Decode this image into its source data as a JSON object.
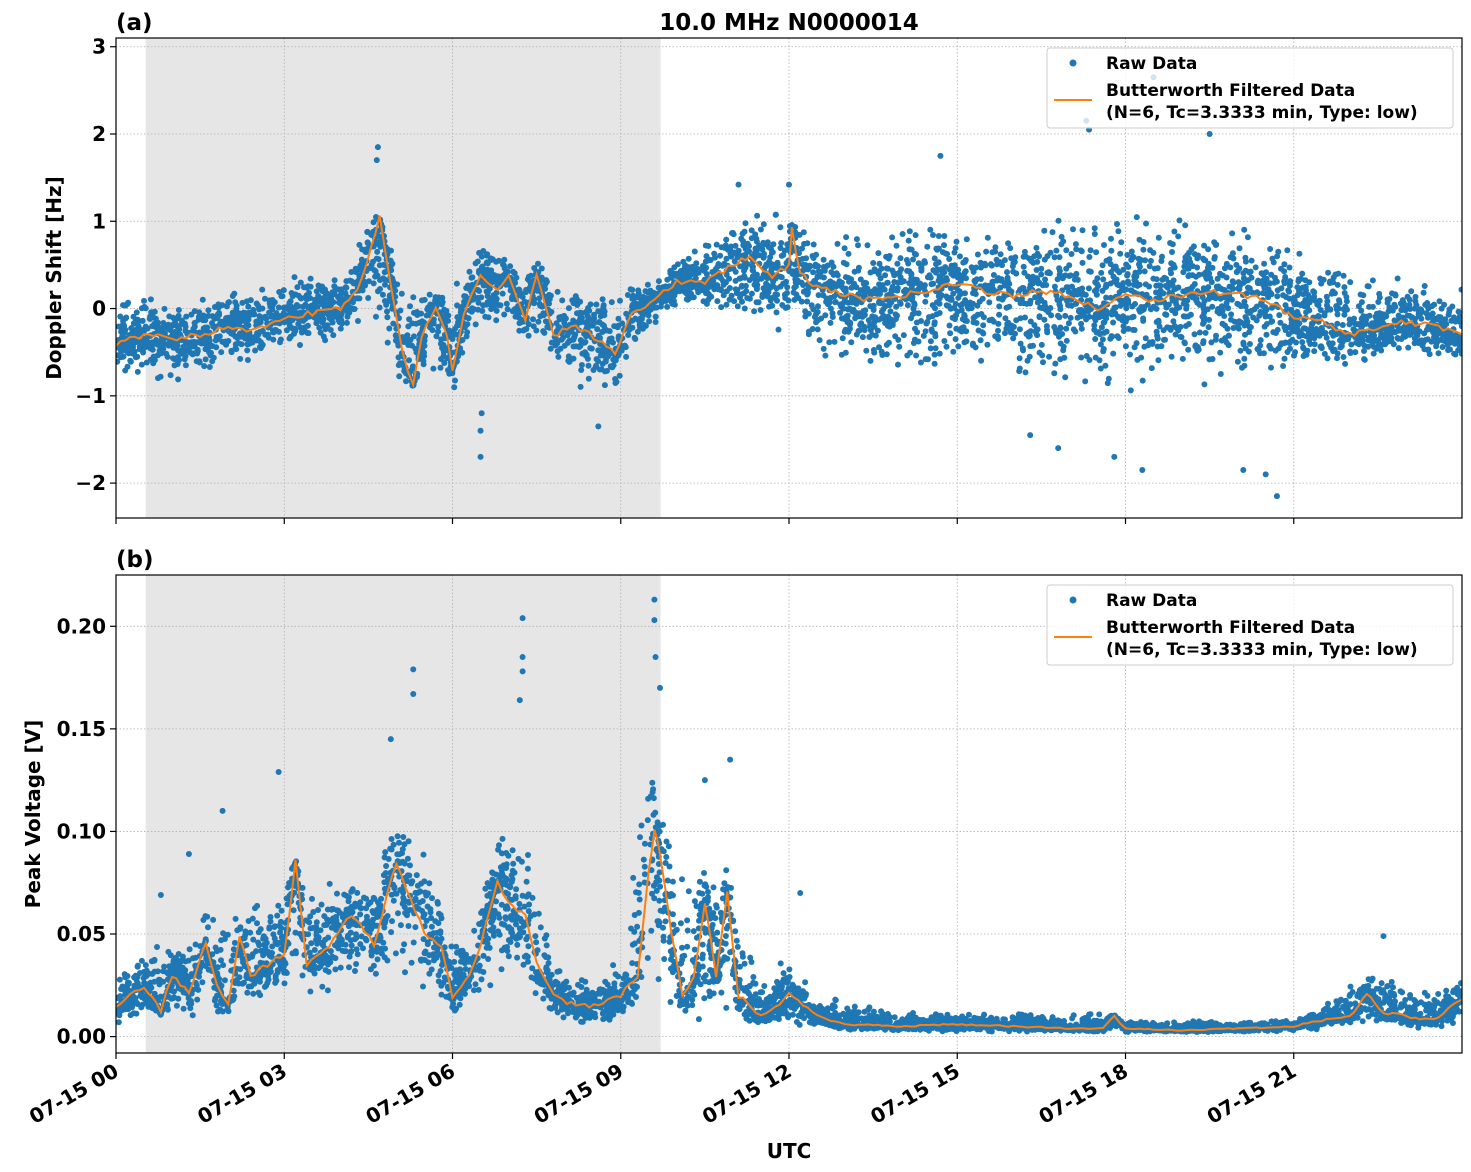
{
  "figure": {
    "title": "10.0 MHz N0000014",
    "xlabel": "UTC"
  },
  "colors": {
    "raw": "#1f77b4",
    "filtered": "#ff7f0e",
    "shade": "#e6e6e6",
    "grid": "#b0b0b0"
  },
  "chart_data": [
    {
      "type": "scatter",
      "panel_label": "(a)",
      "title": "10.0 MHz N0000014",
      "ylabel": "Doppler Shift [Hz]",
      "xlabel": "",
      "xlim_hours_utc": [
        0,
        24
      ],
      "ylim": [
        -2.4,
        3.1
      ],
      "grid": true,
      "legend_position": "top-right",
      "x_tick_labels": [],
      "y_ticks": [
        -2,
        -1,
        0,
        1,
        2,
        3
      ],
      "y_tick_labels": [
        "−2",
        "−1",
        "0",
        "1",
        "2",
        "3"
      ],
      "shaded_interval_hours_utc": [
        0.53,
        9.71
      ],
      "legend": [
        "Raw Data",
        "Butterworth Filtered Data",
        "(N=6, Tc=3.3333 min, Type: low)"
      ],
      "series": [
        {
          "name": "Raw Data",
          "kind": "scatter",
          "envelope": {
            "x": [
              0,
              0.5,
              1,
              1.5,
              2,
              2.5,
              3,
              3.5,
              4,
              4.5,
              5,
              5.5,
              6,
              6.5,
              7,
              7.5,
              8,
              8.5,
              9,
              9.5,
              10,
              10.5,
              11,
              11.5,
              12,
              12.5,
              13,
              13.5,
              14,
              14.5,
              15,
              15.5,
              16,
              16.5,
              17,
              17.5,
              18,
              18.5,
              19,
              19.5,
              20,
              20.5,
              21,
              21.5,
              22,
              22.5,
              23,
              23.5,
              24
            ],
            "lower": [
              -0.9,
              -0.8,
              -1.0,
              -0.9,
              -0.7,
              -0.7,
              -0.5,
              -0.45,
              -0.35,
              -0.1,
              -1.0,
              -0.8,
              -1.0,
              -0.3,
              -0.35,
              -0.5,
              -0.9,
              -1.0,
              -0.9,
              -0.3,
              0.0,
              0.0,
              -0.1,
              -0.3,
              -0.35,
              -0.6,
              -0.7,
              -0.8,
              -0.9,
              -0.9,
              -0.9,
              -0.9,
              -1.0,
              -1.0,
              -1.0,
              -1.0,
              -1.3,
              -1.1,
              -1.0,
              -1.1,
              -1.1,
              -1.0,
              -0.8,
              -0.7,
              -0.7,
              -0.7,
              -0.6,
              -0.7,
              -0.7
            ],
            "upper": [
              0.2,
              0.2,
              0.15,
              0.15,
              0.25,
              0.3,
              0.45,
              0.45,
              0.4,
              1.4,
              0.6,
              0.3,
              0.3,
              0.8,
              0.6,
              0.6,
              0.35,
              0.3,
              0.3,
              0.3,
              0.6,
              0.8,
              1.1,
              1.2,
              1.2,
              0.9,
              0.9,
              1.0,
              1.0,
              1.1,
              1.0,
              1.0,
              1.1,
              1.2,
              1.2,
              1.1,
              1.4,
              1.3,
              1.1,
              1.0,
              1.0,
              1.0,
              0.8,
              0.7,
              0.5,
              0.6,
              0.4,
              0.4,
              0.3
            ]
          },
          "outliers": {
            "x": [
              4.67,
              4.65,
              6.5,
              6.5,
              6.52,
              8.6,
              17.3,
              17.35,
              18.5,
              18.45,
              19.5,
              20.7,
              20.5,
              18.3,
              16.8,
              16.3,
              14.7,
              17.8,
              20.1,
              12.0,
              11.1
            ],
            "y": [
              1.85,
              1.7,
              -1.7,
              -1.4,
              -1.2,
              -1.35,
              2.15,
              2.05,
              2.65,
              2.5,
              2.0,
              -2.15,
              -1.9,
              -1.85,
              -1.6,
              -1.45,
              1.75,
              -1.7,
              -1.85,
              1.42,
              1.42
            ]
          }
        },
        {
          "name": "Butterworth Filtered Data (N=6, Tc=3.3333 min, Type: low)",
          "kind": "line",
          "x": [
            0,
            0.5,
            1,
            1.5,
            2,
            2.5,
            3,
            3.5,
            4,
            4.3,
            4.55,
            4.7,
            4.9,
            5.1,
            5.3,
            5.45,
            5.7,
            5.9,
            6.0,
            6.2,
            6.5,
            6.8,
            7.0,
            7.3,
            7.5,
            7.8,
            8.2,
            8.6,
            8.9,
            9.2,
            9.6,
            10,
            10.5,
            11,
            11.3,
            11.7,
            12,
            12.05,
            12.2,
            12.5,
            13,
            13.5,
            14,
            14.5,
            15,
            15.5,
            16,
            16.5,
            17,
            17.5,
            18,
            18.5,
            19,
            19.5,
            20,
            20.5,
            21,
            21.5,
            22,
            22.5,
            23,
            23.5,
            24
          ],
          "y": [
            -0.4,
            -0.3,
            -0.35,
            -0.3,
            -0.2,
            -0.25,
            -0.1,
            -0.05,
            0.0,
            0.2,
            0.7,
            1.05,
            0.3,
            -0.5,
            -0.9,
            -0.3,
            0.0,
            -0.3,
            -0.7,
            -0.1,
            0.4,
            0.2,
            0.35,
            -0.15,
            0.4,
            -0.3,
            -0.2,
            -0.35,
            -0.5,
            -0.05,
            0.1,
            0.3,
            0.3,
            0.5,
            0.6,
            0.35,
            0.5,
            0.9,
            0.4,
            0.25,
            0.15,
            0.1,
            0.15,
            0.2,
            0.3,
            0.2,
            0.15,
            0.2,
            0.15,
            0.0,
            0.15,
            0.1,
            0.15,
            0.2,
            0.15,
            0.1,
            -0.1,
            -0.15,
            -0.3,
            -0.25,
            -0.15,
            -0.2,
            -0.3
          ]
        }
      ]
    },
    {
      "type": "scatter",
      "panel_label": "(b)",
      "title": "",
      "ylabel": "Peak Voltage [V]",
      "xlabel": "UTC",
      "xlim_hours_utc": [
        0,
        24
      ],
      "ylim": [
        -0.008,
        0.225
      ],
      "grid": true,
      "legend_position": "top-right",
      "x_ticks_hours": [
        0,
        3,
        6,
        9,
        12,
        15,
        18,
        21
      ],
      "x_tick_labels": [
        "07-15 00",
        "07-15 03",
        "07-15 06",
        "07-15 09",
        "07-15 12",
        "07-15 15",
        "07-15 18",
        "07-15 21"
      ],
      "y_ticks": [
        0,
        0.05,
        0.1,
        0.15,
        0.2
      ],
      "y_tick_labels": [
        "0.00",
        "0.05",
        "0.10",
        "0.15",
        "0.20"
      ],
      "shaded_interval_hours_utc": [
        0.53,
        9.71
      ],
      "legend": [
        "Raw Data",
        "Butterworth Filtered Data",
        "(N=6, Tc=3.3333 min, Type: low)"
      ],
      "series": [
        {
          "name": "Raw Data",
          "kind": "scatter",
          "envelope": {
            "x": [
              0,
              0.5,
              1,
              1.5,
              2,
              2.5,
              3,
              3.5,
              4,
              4.5,
              5,
              5.5,
              6,
              6.5,
              7,
              7.5,
              8,
              8.5,
              9,
              9.5,
              10,
              10.5,
              11,
              11.5,
              12,
              12.5,
              13,
              13.5,
              14,
              14.5,
              15,
              15.5,
              16,
              16.5,
              17,
              17.5,
              18,
              18.5,
              19,
              19.5,
              20,
              20.5,
              21,
              21.5,
              22,
              22.5,
              23,
              23.5,
              24
            ],
            "lower": [
              0.005,
              0.008,
              0.008,
              0.01,
              0.01,
              0.015,
              0.02,
              0.02,
              0.02,
              0.02,
              0.015,
              0.015,
              0.01,
              0.015,
              0.02,
              0.01,
              0.005,
              0.005,
              0.005,
              0.02,
              0.01,
              0.005,
              0.005,
              0.005,
              0.005,
              0.003,
              0.003,
              0.003,
              0.002,
              0.002,
              0.002,
              0.002,
              0.002,
              0.002,
              0.002,
              0.002,
              0.002,
              0.002,
              0.002,
              0.002,
              0.002,
              0.002,
              0.002,
              0.003,
              0.005,
              0.005,
              0.004,
              0.004,
              0.005
            ],
            "upper": [
              0.035,
              0.045,
              0.045,
              0.06,
              0.08,
              0.07,
              0.09,
              0.085,
              0.08,
              0.085,
              0.11,
              0.1,
              0.05,
              0.07,
              0.12,
              0.08,
              0.03,
              0.035,
              0.04,
              0.15,
              0.09,
              0.09,
              0.1,
              0.03,
              0.04,
              0.02,
              0.018,
              0.015,
              0.012,
              0.012,
              0.012,
              0.012,
              0.012,
              0.012,
              0.012,
              0.012,
              0.01,
              0.008,
              0.008,
              0.008,
              0.008,
              0.008,
              0.008,
              0.015,
              0.03,
              0.035,
              0.025,
              0.025,
              0.03
            ]
          },
          "outliers": {
            "x": [
              9.6,
              9.6,
              9.62,
              7.25,
              7.25,
              7.25,
              5.3,
              5.3,
              4.9,
              2.9,
              10.95,
              1.9,
              12.2,
              22.6,
              1.3,
              0.8,
              7.2,
              9.7,
              10.5
            ],
            "y": [
              0.213,
              0.203,
              0.185,
              0.204,
              0.185,
              0.178,
              0.179,
              0.167,
              0.145,
              0.129,
              0.135,
              0.11,
              0.07,
              0.049,
              0.089,
              0.069,
              0.164,
              0.17,
              0.125
            ]
          }
        },
        {
          "name": "Butterworth Filtered Data (N=6, Tc=3.3333 min, Type: low)",
          "kind": "line",
          "x": [
            0,
            0.5,
            0.8,
            1.0,
            1.3,
            1.6,
            1.8,
            2.0,
            2.2,
            2.4,
            2.7,
            3.0,
            3.2,
            3.4,
            3.8,
            4.2,
            4.6,
            5.0,
            5.5,
            5.8,
            6.0,
            6.3,
            6.5,
            6.8,
            7.0,
            7.3,
            7.5,
            7.8,
            8.2,
            8.6,
            9.0,
            9.3,
            9.5,
            9.6,
            9.7,
            9.9,
            10.1,
            10.3,
            10.5,
            10.7,
            10.9,
            11.1,
            11.5,
            12.0,
            12.5,
            13.0,
            14,
            15,
            16,
            17,
            17.6,
            17.8,
            18,
            19,
            20,
            21,
            21.5,
            22,
            22.3,
            22.6,
            23,
            23.5,
            24
          ],
          "y": [
            0.015,
            0.025,
            0.012,
            0.03,
            0.022,
            0.045,
            0.025,
            0.015,
            0.05,
            0.03,
            0.035,
            0.04,
            0.085,
            0.035,
            0.045,
            0.06,
            0.045,
            0.085,
            0.05,
            0.045,
            0.02,
            0.03,
            0.045,
            0.075,
            0.065,
            0.06,
            0.035,
            0.02,
            0.015,
            0.015,
            0.02,
            0.03,
            0.08,
            0.1,
            0.09,
            0.05,
            0.02,
            0.03,
            0.065,
            0.03,
            0.07,
            0.02,
            0.01,
            0.02,
            0.01,
            0.006,
            0.005,
            0.006,
            0.005,
            0.004,
            0.004,
            0.01,
            0.004,
            0.003,
            0.004,
            0.005,
            0.008,
            0.01,
            0.02,
            0.012,
            0.01,
            0.008,
            0.018
          ]
        }
      ]
    }
  ]
}
